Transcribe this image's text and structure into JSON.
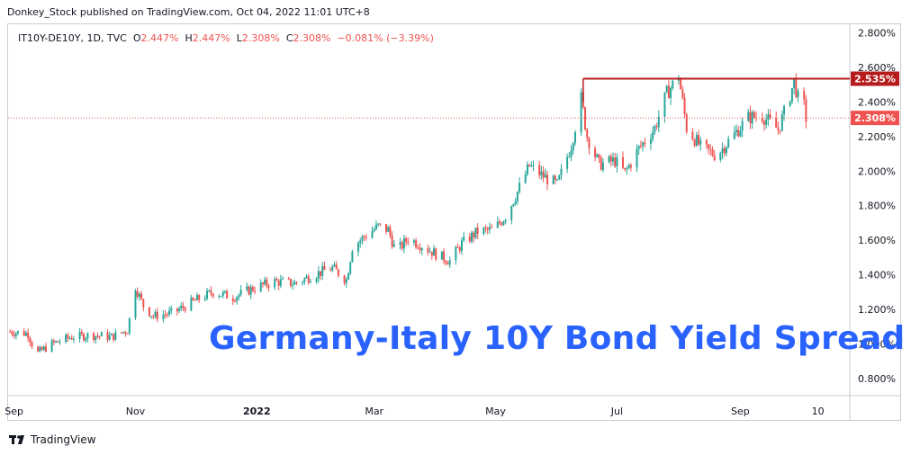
{
  "header": {
    "publisher_line": "Donkey_Stock published on TradingView.com, Oct 04, 2022 11:01 UTC+8",
    "symbol": "IT10Y-DE10Y, 1D, TVC",
    "o_label": "O",
    "o_value": "2.447%",
    "h_label": "H",
    "h_value": "2.447%",
    "l_label": "L",
    "l_value": "2.308%",
    "c_label": "C",
    "c_value": "2.308%",
    "change": "−0.081% (−3.39%)"
  },
  "watermark": "Germany-Italy 10Y Bond Yield Spread",
  "brand": {
    "name": "TradingView",
    "logo_icon": "tradingview-logo-icon"
  },
  "colors": {
    "up": "#26a69a",
    "down": "#ef5350",
    "resistance": "#b71c1c",
    "price_label": "#ef5350",
    "text": "#131722"
  },
  "chart_data": {
    "type": "candlestick",
    "title": "",
    "xlabel": "",
    "ylabel": "",
    "ylim": [
      0.7,
      2.85
    ],
    "y_ticks": [
      "2.800%",
      "2.600%",
      "2.400%",
      "2.200%",
      "2.000%",
      "1.800%",
      "1.600%",
      "1.400%",
      "1.200%",
      "1.000%",
      "0.800%"
    ],
    "y_tick_values": [
      2.8,
      2.6,
      2.4,
      2.2,
      2.0,
      1.8,
      1.6,
      1.4,
      1.2,
      1.0,
      0.8
    ],
    "x_ticks": [
      "Sep",
      "Nov",
      "2022",
      "Mar",
      "May",
      "Jul",
      "Sep",
      "10"
    ],
    "x_tick_dates": [
      "2021-09-01",
      "2021-11-01",
      "2022-01-01",
      "2022-03-01",
      "2022-05-01",
      "2022-07-01",
      "2022-09-01",
      "2022-10-10"
    ],
    "x_range_dates": [
      "2021-08-29",
      "2022-10-26"
    ],
    "grid": false,
    "resistance_level": 2.535,
    "resistance_label": "2.535%",
    "resistance_start_date": "2022-06-14",
    "last_price": 2.308,
    "last_price_label": "2.308%",
    "series_points": [
      [
        "2021-08-30",
        1.07
      ],
      [
        "2021-09-08",
        1.06
      ],
      [
        "2021-09-12",
        0.94
      ],
      [
        "2021-09-20",
        1.0
      ],
      [
        "2021-09-30",
        1.04
      ],
      [
        "2021-10-10",
        1.05
      ],
      [
        "2021-10-20",
        1.04
      ],
      [
        "2021-10-28",
        1.08
      ],
      [
        "2021-11-01",
        1.33
      ],
      [
        "2021-11-05",
        1.22
      ],
      [
        "2021-11-10",
        1.16
      ],
      [
        "2021-11-20",
        1.18
      ],
      [
        "2021-12-01",
        1.25
      ],
      [
        "2021-12-10",
        1.3
      ],
      [
        "2021-12-20",
        1.27
      ],
      [
        "2022-01-01",
        1.33
      ],
      [
        "2022-01-10",
        1.36
      ],
      [
        "2022-01-20",
        1.35
      ],
      [
        "2022-02-01",
        1.41
      ],
      [
        "2022-02-08",
        1.44
      ],
      [
        "2022-02-15",
        1.37
      ],
      [
        "2022-02-18",
        1.56
      ],
      [
        "2022-02-25",
        1.63
      ],
      [
        "2022-03-03",
        1.68
      ],
      [
        "2022-03-08",
        1.66
      ],
      [
        "2022-03-12",
        1.53
      ],
      [
        "2022-03-18",
        1.61
      ],
      [
        "2022-03-25",
        1.57
      ],
      [
        "2022-04-01",
        1.52
      ],
      [
        "2022-04-08",
        1.48
      ],
      [
        "2022-04-14",
        1.58
      ],
      [
        "2022-04-22",
        1.65
      ],
      [
        "2022-04-30",
        1.66
      ],
      [
        "2022-05-06",
        1.74
      ],
      [
        "2022-05-12",
        1.88
      ],
      [
        "2022-05-18",
        2.03
      ],
      [
        "2022-05-25",
        1.97
      ],
      [
        "2022-06-01",
        1.92
      ],
      [
        "2022-06-08",
        2.15
      ],
      [
        "2022-06-13",
        2.42
      ],
      [
        "2022-06-16",
        2.2
      ],
      [
        "2022-06-22",
        2.04
      ],
      [
        "2022-06-30",
        2.06
      ],
      [
        "2022-07-05",
        1.99
      ],
      [
        "2022-07-12",
        2.13
      ],
      [
        "2022-07-20",
        2.25
      ],
      [
        "2022-07-26",
        2.45
      ],
      [
        "2022-08-01",
        2.55
      ],
      [
        "2022-08-05",
        2.25
      ],
      [
        "2022-08-12",
        2.14
      ],
      [
        "2022-08-20",
        2.09
      ],
      [
        "2022-08-28",
        2.2
      ],
      [
        "2022-09-05",
        2.31
      ],
      [
        "2022-09-12",
        2.32
      ],
      [
        "2022-09-20",
        2.24
      ],
      [
        "2022-09-25",
        2.4
      ],
      [
        "2022-09-28",
        2.52
      ],
      [
        "2022-09-30",
        2.42
      ],
      [
        "2022-10-03",
        2.38
      ],
      [
        "2022-10-04",
        2.308
      ]
    ]
  }
}
